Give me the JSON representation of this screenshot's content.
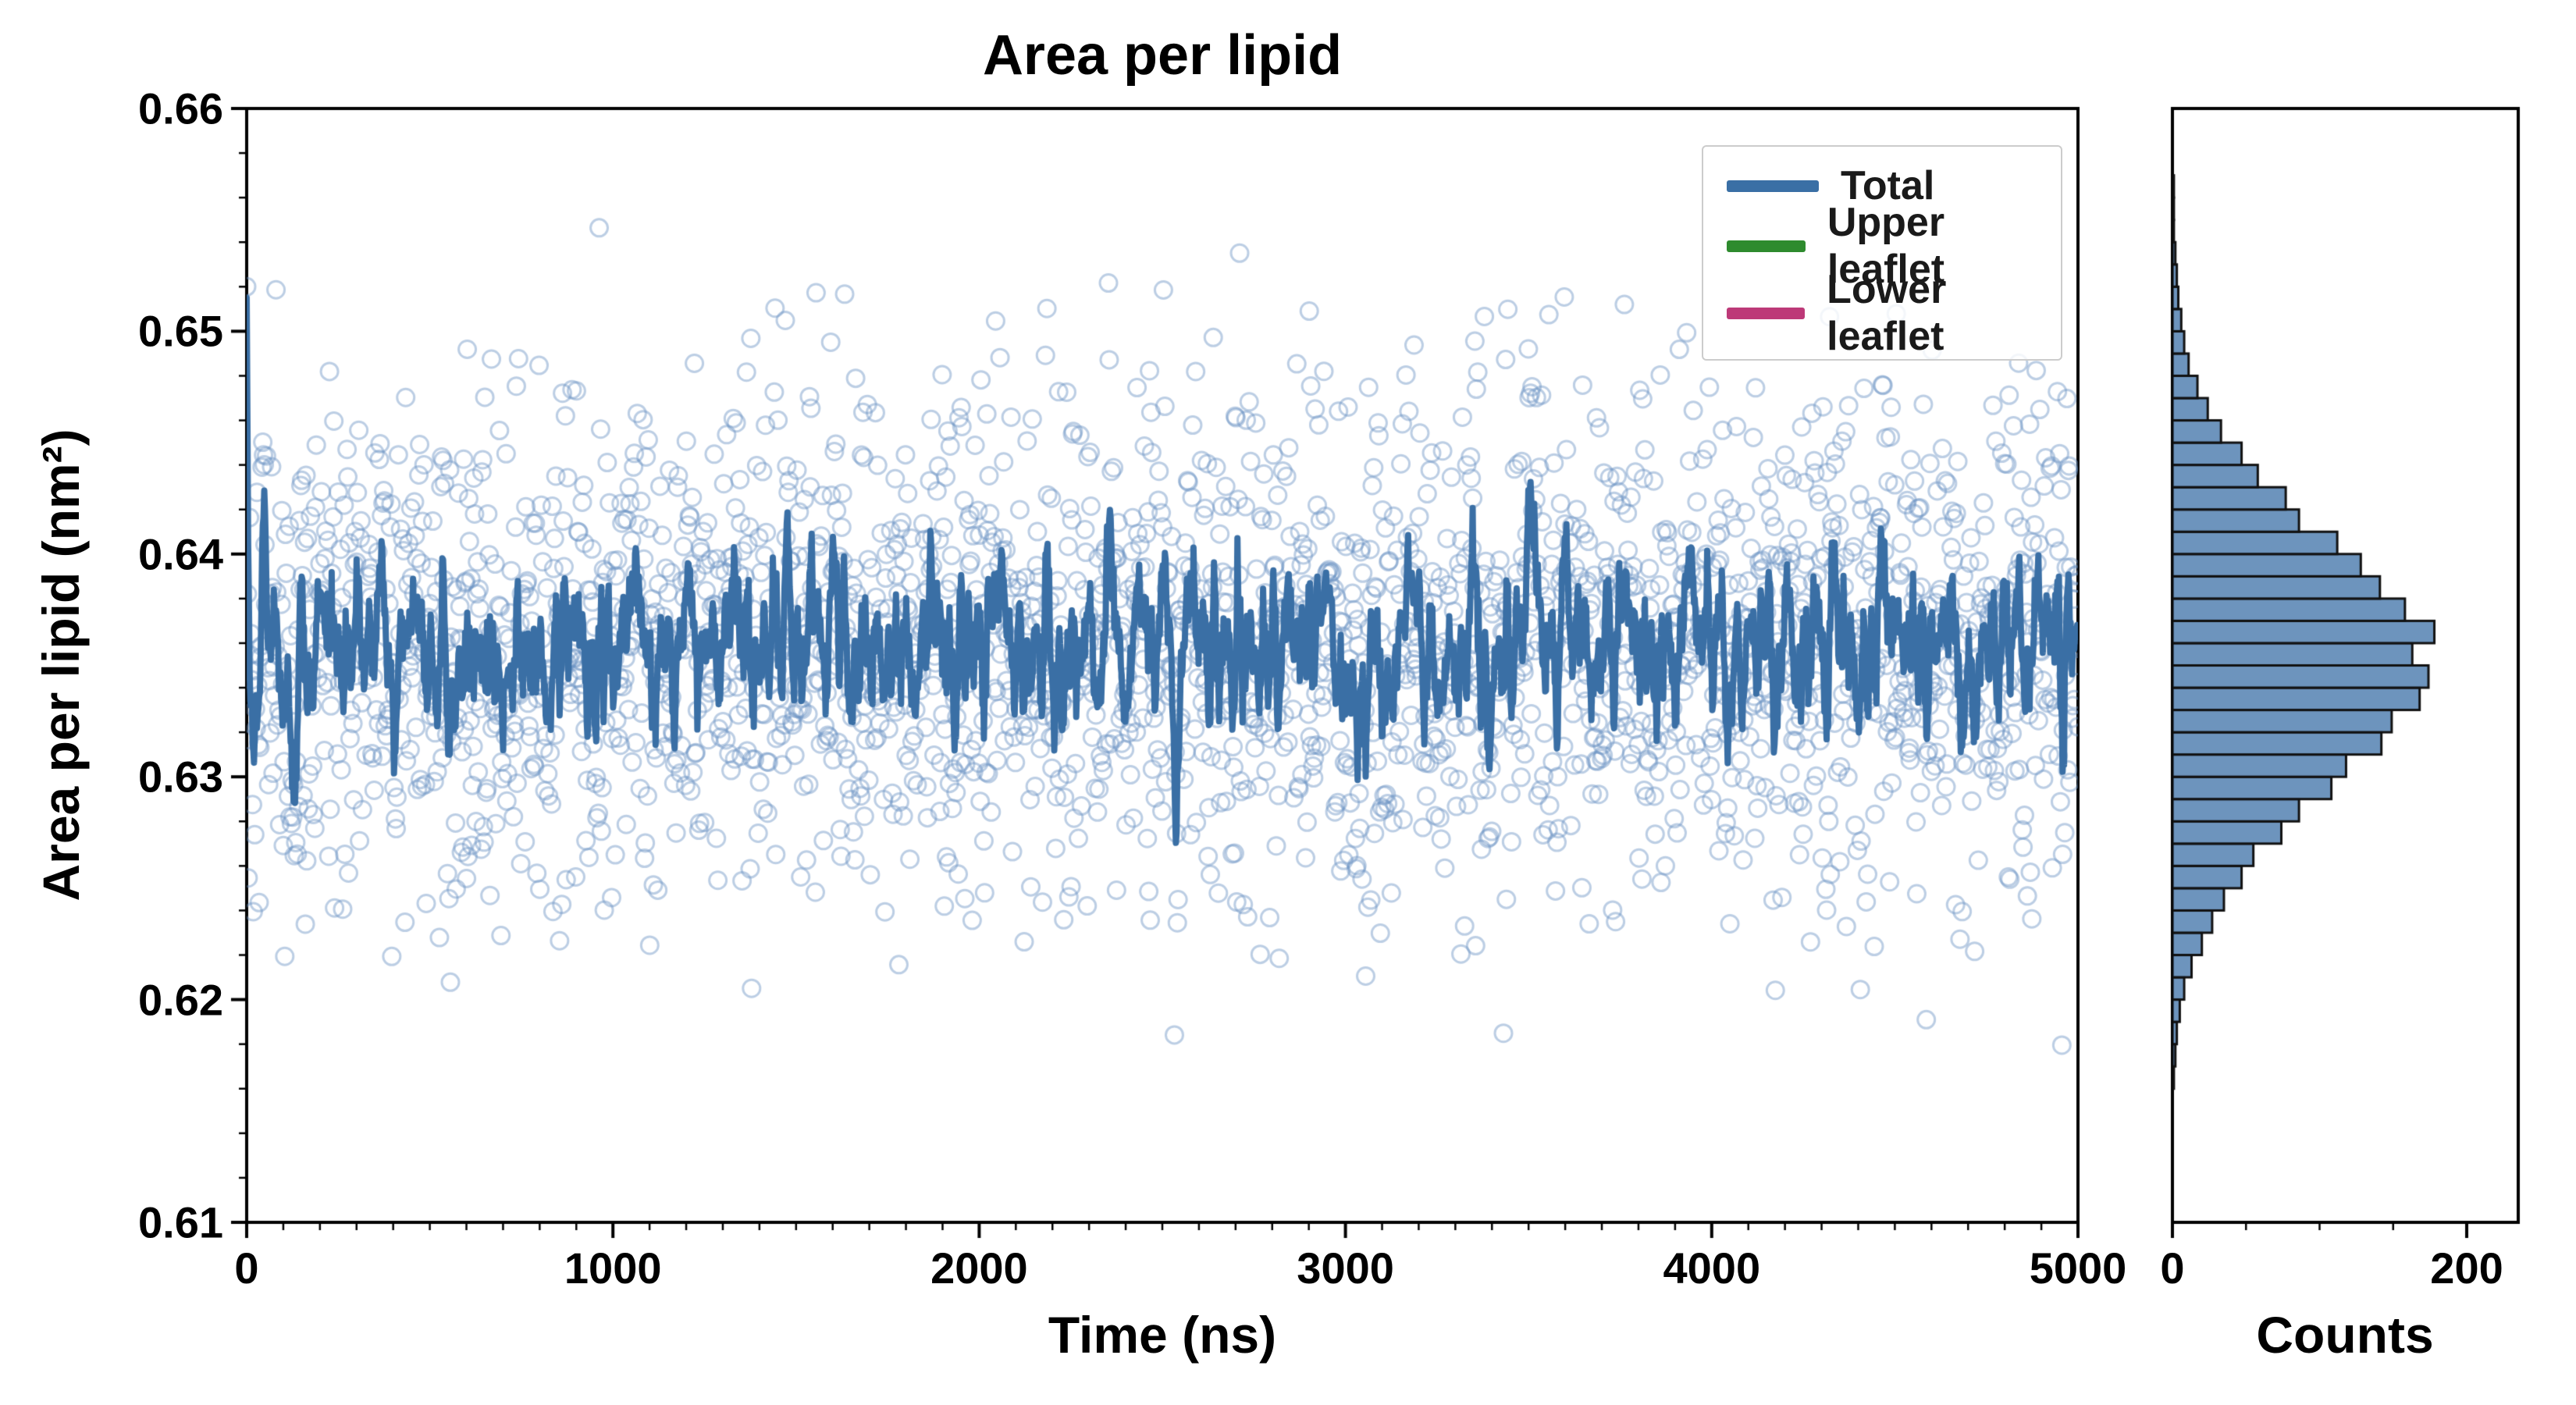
{
  "chart_data": {
    "type": "scatter",
    "title": "Area per lipid",
    "main_plot": {
      "xlabel": "Time (ns)",
      "ylabel": "Area per lipid (nm²)",
      "xlim": [
        0,
        5000
      ],
      "ylim": [
        0.61,
        0.66
      ],
      "xticks": [
        0,
        1000,
        2000,
        3000,
        4000,
        5000
      ],
      "yticks": [
        0.61,
        0.62,
        0.63,
        0.64,
        0.65,
        0.66
      ],
      "x_minor_step": 100,
      "y_minor_step": 0.002,
      "grid": false,
      "scatter": {
        "marker": "open-circle",
        "color": "#6a93c3",
        "alpha": 0.45,
        "n_points": 2500,
        "mean": 0.6358,
        "std": 0.0057,
        "ymin": 0.6155,
        "ymax": 0.6585,
        "initial_value": 0.652
      },
      "line": {
        "name": "Total",
        "color": "#3a6fa5",
        "smooth_window": 7,
        "mean": 0.636,
        "initial_transient": [
          0.6515,
          0.646,
          0.6405,
          0.638
        ]
      }
    },
    "legend": {
      "position": "upper right",
      "entries": [
        {
          "label": "Total",
          "color": "#3a6fa5"
        },
        {
          "label": "Upper leaflet",
          "color": "#2e8b2e"
        },
        {
          "label": "Lower leaflet",
          "color": "#bd3978"
        }
      ]
    },
    "histogram": {
      "xlabel": "Counts",
      "orientation": "horizontal",
      "xlim": [
        0,
        235
      ],
      "xticks": [
        0,
        200
      ],
      "x_minor_step": 50,
      "bin_start": 0.616,
      "bin_width": 0.001,
      "fill_color": "#5d88b6",
      "fill_alpha": 0.9,
      "edge_color": "#111111",
      "counts": [
        1,
        2,
        3,
        5,
        8,
        13,
        20,
        27,
        35,
        47,
        55,
        74,
        86,
        108,
        118,
        142,
        149,
        168,
        174,
        163,
        178,
        158,
        141,
        128,
        112,
        86,
        77,
        58,
        47,
        33,
        24,
        17,
        11,
        8,
        6,
        4,
        3,
        2,
        1,
        1,
        1
      ]
    }
  }
}
